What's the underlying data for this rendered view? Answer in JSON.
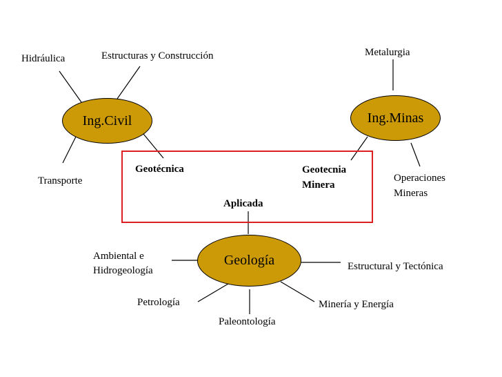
{
  "nodes": {
    "civil": "Ing.Civil",
    "minas": "Ing.Minas",
    "geologia": "Geología"
  },
  "civil_branches": {
    "hidraulica": "Hidráulica",
    "estructuras": "Estructuras y Construcción",
    "transporte": "Transporte"
  },
  "minas_branches": {
    "metalurgia": "Metalurgia",
    "operaciones_line1": "Operaciones",
    "operaciones_line2": "Mineras"
  },
  "geologia_branches": {
    "ambiental_line1": "Ambiental e",
    "ambiental_line2": "Hidrogeología",
    "estructural": "Estructural y Tectónica",
    "petrologia": "Petrología",
    "paleontologia": "Paleontología",
    "mineria": "Minería y Energía"
  },
  "overlap": {
    "geotecnica": "Geotécnica",
    "geotecnia_line1": "Geotecnia",
    "geotecnia_line2": "Minera",
    "aplicada": "Aplicada"
  },
  "colors": {
    "node_fill": "#cc9a06",
    "box_border": "#dd1f1f"
  }
}
